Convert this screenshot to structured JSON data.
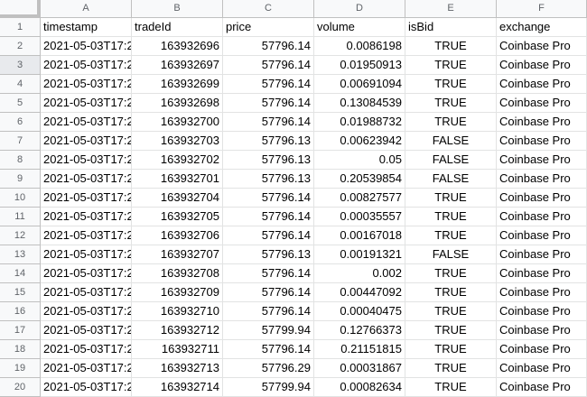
{
  "columns": [
    "A",
    "B",
    "C",
    "D",
    "E",
    "F"
  ],
  "header_row": {
    "number": "1",
    "cells": [
      "timestamp",
      "tradeId",
      "price",
      "volume",
      "isBid",
      "exchange"
    ]
  },
  "rows": [
    {
      "number": "2",
      "cells": [
        "2021-05-03T17:2",
        "163932696",
        "57796.14",
        "0.0086198",
        "TRUE",
        "Coinbase Pro"
      ]
    },
    {
      "number": "3",
      "cells": [
        "2021-05-03T17:2",
        "163932697",
        "57796.14",
        "0.01950913",
        "TRUE",
        "Coinbase Pro"
      ]
    },
    {
      "number": "4",
      "cells": [
        "2021-05-03T17:2",
        "163932699",
        "57796.14",
        "0.00691094",
        "TRUE",
        "Coinbase Pro"
      ]
    },
    {
      "number": "5",
      "cells": [
        "2021-05-03T17:2",
        "163932698",
        "57796.14",
        "0.13084539",
        "TRUE",
        "Coinbase Pro"
      ]
    },
    {
      "number": "6",
      "cells": [
        "2021-05-03T17:2",
        "163932700",
        "57796.14",
        "0.01988732",
        "TRUE",
        "Coinbase Pro"
      ]
    },
    {
      "number": "7",
      "cells": [
        "2021-05-03T17:2",
        "163932703",
        "57796.13",
        "0.00623942",
        "FALSE",
        "Coinbase Pro"
      ]
    },
    {
      "number": "8",
      "cells": [
        "2021-05-03T17:2",
        "163932702",
        "57796.13",
        "0.05",
        "FALSE",
        "Coinbase Pro"
      ]
    },
    {
      "number": "9",
      "cells": [
        "2021-05-03T17:2",
        "163932701",
        "57796.13",
        "0.20539854",
        "FALSE",
        "Coinbase Pro"
      ]
    },
    {
      "number": "10",
      "cells": [
        "2021-05-03T17:2",
        "163932704",
        "57796.14",
        "0.00827577",
        "TRUE",
        "Coinbase Pro"
      ]
    },
    {
      "number": "11",
      "cells": [
        "2021-05-03T17:2",
        "163932705",
        "57796.14",
        "0.00035557",
        "TRUE",
        "Coinbase Pro"
      ]
    },
    {
      "number": "12",
      "cells": [
        "2021-05-03T17:2",
        "163932706",
        "57796.14",
        "0.00167018",
        "TRUE",
        "Coinbase Pro"
      ]
    },
    {
      "number": "13",
      "cells": [
        "2021-05-03T17:2",
        "163932707",
        "57796.13",
        "0.00191321",
        "FALSE",
        "Coinbase Pro"
      ]
    },
    {
      "number": "14",
      "cells": [
        "2021-05-03T17:2",
        "163932708",
        "57796.14",
        "0.002",
        "TRUE",
        "Coinbase Pro"
      ]
    },
    {
      "number": "15",
      "cells": [
        "2021-05-03T17:2",
        "163932709",
        "57796.14",
        "0.00447092",
        "TRUE",
        "Coinbase Pro"
      ]
    },
    {
      "number": "16",
      "cells": [
        "2021-05-03T17:2",
        "163932710",
        "57796.14",
        "0.00040475",
        "TRUE",
        "Coinbase Pro"
      ]
    },
    {
      "number": "17",
      "cells": [
        "2021-05-03T17:2",
        "163932712",
        "57799.94",
        "0.12766373",
        "TRUE",
        "Coinbase Pro"
      ]
    },
    {
      "number": "18",
      "cells": [
        "2021-05-03T17:2",
        "163932711",
        "57796.14",
        "0.21151815",
        "TRUE",
        "Coinbase Pro"
      ]
    },
    {
      "number": "19",
      "cells": [
        "2021-05-03T17:2",
        "163932713",
        "57796.29",
        "0.00031867",
        "TRUE",
        "Coinbase Pro"
      ]
    },
    {
      "number": "20",
      "cells": [
        "2021-05-03T17:2",
        "163932714",
        "57799.94",
        "0.00082634",
        "TRUE",
        "Coinbase Pro"
      ]
    }
  ],
  "selected_row": "3",
  "colors": {
    "header_bg": "#f8f9fa",
    "header_text": "#5f6368",
    "gridline": "#e2e3e3",
    "header_border": "#c0c0c0"
  }
}
